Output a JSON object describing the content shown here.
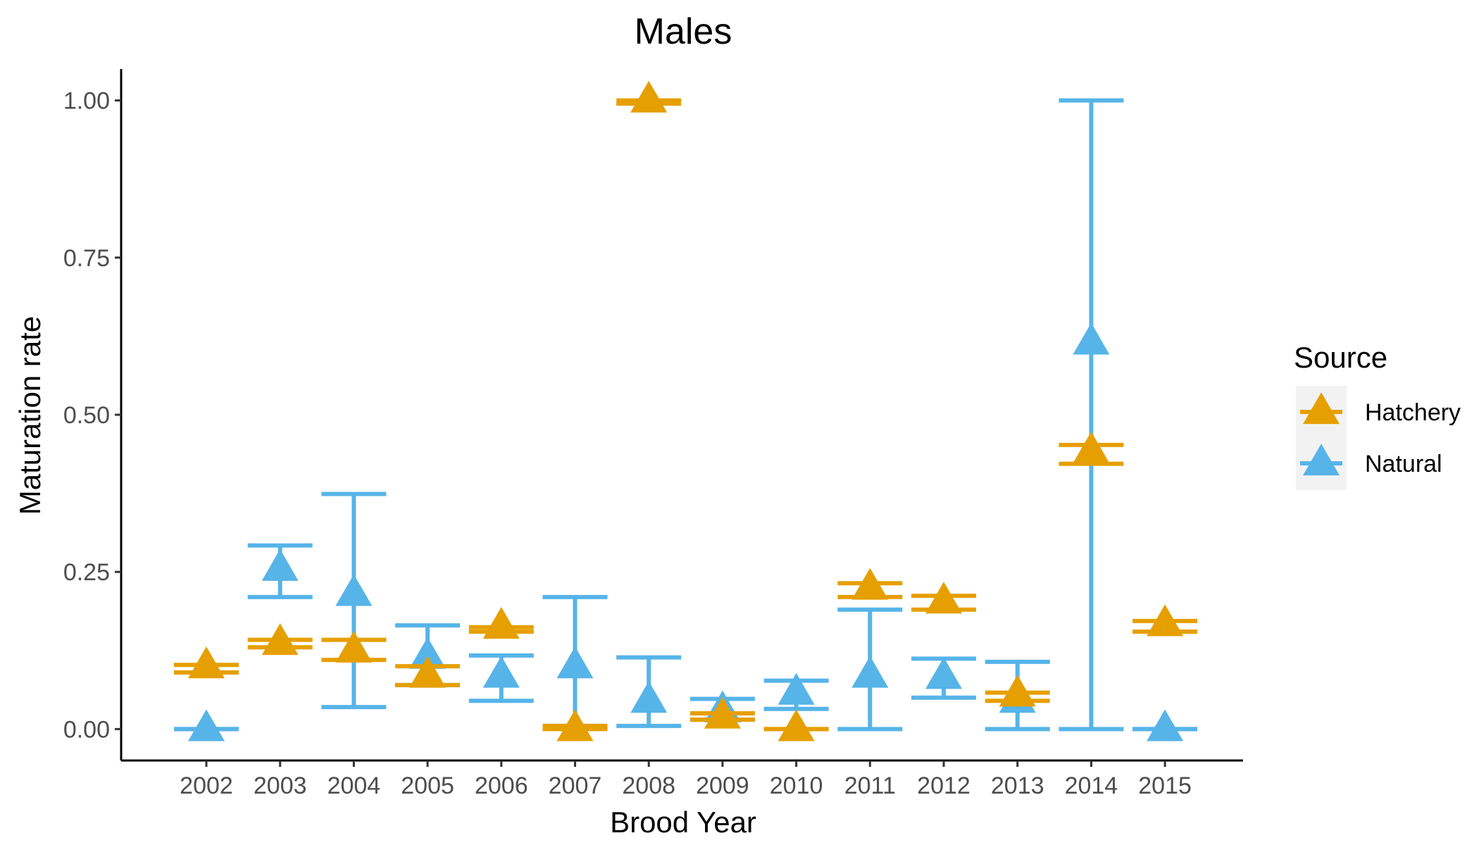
{
  "chart_data": {
    "type": "scatter",
    "title": "Males",
    "xlabel": "Brood Year",
    "ylabel": "Maturation rate",
    "categories": [
      "2002",
      "2003",
      "2004",
      "2005",
      "2006",
      "2007",
      "2008",
      "2009",
      "2010",
      "2011",
      "2012",
      "2013",
      "2014",
      "2015"
    ],
    "ylim": [
      -0.05,
      1.05
    ],
    "yticks": [
      0.0,
      0.25,
      0.5,
      0.75,
      1.0
    ],
    "ytick_labels": [
      "0.00",
      "0.25",
      "0.50",
      "0.75",
      "1.00"
    ],
    "grid": false,
    "marker": "triangle",
    "error_bars": true,
    "legend": {
      "title": "Source",
      "position": "right"
    },
    "series": [
      {
        "name": "Hatchery",
        "color": "#E69F00",
        "values": [
          0.1,
          0.137,
          0.125,
          0.085,
          0.163,
          0.0,
          1.0,
          0.02,
          0.0,
          0.225,
          0.203,
          0.055,
          0.442,
          0.167
        ],
        "lower": [
          0.09,
          0.13,
          0.11,
          0.07,
          0.155,
          0.0,
          0.995,
          0.015,
          0.0,
          0.21,
          0.19,
          0.045,
          0.422,
          0.155
        ],
        "upper": [
          0.102,
          0.142,
          0.142,
          0.1,
          0.162,
          0.005,
          1.0,
          0.025,
          0.0,
          0.232,
          0.212,
          0.058,
          0.452,
          0.172
        ]
      },
      {
        "name": "Natural",
        "color": "#56B4E9",
        "values": [
          0.0,
          0.255,
          0.215,
          0.115,
          0.085,
          0.1,
          0.045,
          0.03,
          0.058,
          0.085,
          0.083,
          0.045,
          0.615,
          0.0
        ],
        "lower": [
          0.0,
          0.21,
          0.035,
          0.07,
          0.045,
          0.005,
          0.005,
          0.015,
          0.032,
          0.0,
          0.05,
          0.0,
          0.0,
          0.0
        ],
        "upper": [
          0.0,
          0.292,
          0.374,
          0.165,
          0.117,
          0.21,
          0.114,
          0.048,
          0.077,
          0.19,
          0.112,
          0.107,
          1.0,
          0.0
        ]
      }
    ]
  }
}
